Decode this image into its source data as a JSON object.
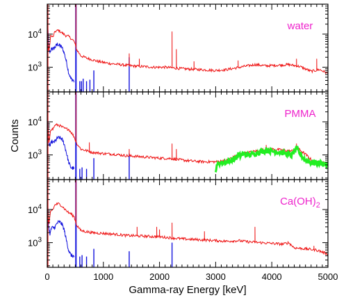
{
  "chart_data": {
    "type": "line",
    "xlabel": "Gamma-ray Energy [keV]",
    "ylabel": "Counts",
    "xlim": [
      0,
      5000
    ],
    "x_ticks": [
      "0",
      "1000",
      "2000",
      "3000",
      "4000",
      "5000"
    ],
    "y_scale": "log",
    "y_tick_labels": [
      {
        "base": "10",
        "exp": "4"
      },
      {
        "base": "10",
        "exp": "3"
      }
    ],
    "label_color": "#ee22cc",
    "colors": {
      "red": "#ee1111",
      "blue": "#1111dd",
      "green": "#22ee22"
    },
    "panels": [
      {
        "label": {
          "main": "water",
          "sub": "",
          "tail": ""
        },
        "red": [
          [
            0,
            12000
          ],
          [
            30,
            2800
          ],
          [
            60,
            9000
          ],
          [
            100,
            8000
          ],
          [
            140,
            12000
          ],
          [
            200,
            13000
          ],
          [
            260,
            11000
          ],
          [
            330,
            9000
          ],
          [
            380,
            8500
          ],
          [
            420,
            7500
          ],
          [
            480,
            6000
          ],
          [
            520,
            3500
          ],
          [
            600,
            2200
          ],
          [
            700,
            1900
          ],
          [
            900,
            1500
          ],
          [
            1100,
            1300
          ],
          [
            1300,
            1200
          ],
          [
            1500,
            1100
          ],
          [
            1700,
            1050
          ],
          [
            1900,
            1000
          ],
          [
            2100,
            1000
          ],
          [
            2400,
            900
          ],
          [
            2700,
            850
          ],
          [
            3000,
            800
          ],
          [
            3200,
            850
          ],
          [
            3500,
            1050
          ],
          [
            3700,
            1200
          ],
          [
            3900,
            1100
          ],
          [
            4100,
            1150
          ],
          [
            4300,
            1200
          ],
          [
            4500,
            1050
          ],
          [
            4700,
            750
          ],
          [
            4850,
            850
          ],
          [
            5000,
            650
          ]
        ],
        "red_peaks": [
          [
            511,
            140000
          ],
          [
            1460,
            2600
          ],
          [
            1640,
            1800
          ],
          [
            2223,
            12000
          ],
          [
            2300,
            3500
          ],
          [
            2614,
            1500
          ],
          [
            3400,
            1600
          ],
          [
            4440,
            1800
          ],
          [
            4800,
            1800
          ]
        ],
        "blue": [
          [
            0,
            50000
          ],
          [
            25,
            4000
          ],
          [
            50,
            2500
          ],
          [
            80,
            4000
          ],
          [
            100,
            3500
          ],
          [
            140,
            4000
          ],
          [
            180,
            5000
          ],
          [
            220,
            4500
          ],
          [
            260,
            4000
          ],
          [
            300,
            2800
          ],
          [
            340,
            1500
          ],
          [
            380,
            700
          ],
          [
            420,
            450
          ],
          [
            480,
            380
          ]
        ],
        "blue_peaks": [
          [
            511,
            140000
          ],
          [
            580,
            380
          ],
          [
            610,
            380
          ],
          [
            640,
            450
          ],
          [
            700,
            380
          ],
          [
            760,
            420
          ],
          [
            830,
            800
          ],
          [
            1460,
            2000
          ]
        ],
        "green": []
      },
      {
        "label": {
          "main": "PMMA",
          "sub": "",
          "tail": ""
        },
        "red": [
          [
            0,
            20000
          ],
          [
            30,
            2200
          ],
          [
            60,
            6000
          ],
          [
            100,
            6000
          ],
          [
            140,
            8000
          ],
          [
            200,
            8000
          ],
          [
            260,
            7000
          ],
          [
            320,
            6200
          ],
          [
            380,
            6000
          ],
          [
            420,
            5000
          ],
          [
            480,
            3500
          ],
          [
            520,
            2300
          ],
          [
            600,
            1500
          ],
          [
            800,
            1200
          ],
          [
            1000,
            1100
          ],
          [
            1200,
            1050
          ],
          [
            1400,
            950
          ],
          [
            1600,
            900
          ],
          [
            1800,
            850
          ],
          [
            2000,
            800
          ],
          [
            2200,
            780
          ],
          [
            2400,
            700
          ],
          [
            2600,
            650
          ],
          [
            2800,
            620
          ],
          [
            3000,
            620
          ],
          [
            3200,
            700
          ],
          [
            3400,
            1000
          ],
          [
            3600,
            1200
          ],
          [
            3800,
            1400
          ],
          [
            4000,
            1500
          ],
          [
            4200,
            1400
          ],
          [
            4350,
            1300
          ],
          [
            4450,
            1700
          ],
          [
            4500,
            1400
          ],
          [
            4600,
            1050
          ],
          [
            4750,
            600
          ],
          [
            4900,
            620
          ],
          [
            5000,
            500
          ]
        ],
        "red_peaks": [
          [
            511,
            140000
          ],
          [
            750,
            2400
          ],
          [
            1460,
            1500
          ],
          [
            2223,
            2200
          ],
          [
            2300,
            1500
          ],
          [
            3900,
            2000
          ],
          [
            4440,
            2200
          ]
        ],
        "blue": [
          [
            0,
            50000
          ],
          [
            25,
            2600
          ],
          [
            50,
            1800
          ],
          [
            80,
            2600
          ],
          [
            100,
            2300
          ],
          [
            140,
            2600
          ],
          [
            180,
            3200
          ],
          [
            220,
            3300
          ],
          [
            260,
            3000
          ],
          [
            300,
            2200
          ],
          [
            340,
            1200
          ],
          [
            380,
            600
          ],
          [
            420,
            420
          ],
          [
            480,
            380
          ]
        ],
        "blue_peaks": [
          [
            511,
            140000
          ],
          [
            580,
            380
          ],
          [
            620,
            420
          ],
          [
            700,
            380
          ],
          [
            830,
            800
          ],
          [
            1460,
            1100
          ]
        ],
        "green": [
          [
            2990,
            600
          ],
          [
            3000,
            330
          ],
          [
            3050,
            600
          ],
          [
            3100,
            560
          ],
          [
            3200,
            620
          ],
          [
            3300,
            720
          ],
          [
            3400,
            900
          ],
          [
            3500,
            1050
          ],
          [
            3600,
            1000
          ],
          [
            3700,
            1100
          ],
          [
            3800,
            1250
          ],
          [
            3900,
            1350
          ],
          [
            4000,
            1300
          ],
          [
            4100,
            1250
          ],
          [
            4200,
            1150
          ],
          [
            4300,
            1050
          ],
          [
            4350,
            950
          ],
          [
            4400,
            1300
          ],
          [
            4450,
            1500
          ],
          [
            4500,
            1100
          ],
          [
            4550,
            850
          ],
          [
            4600,
            700
          ],
          [
            4700,
            600
          ],
          [
            4800,
            580
          ],
          [
            4900,
            560
          ],
          [
            5000,
            500
          ]
        ],
        "green_peaks": [
          [
            3400,
            1200
          ],
          [
            3900,
            1700
          ],
          [
            4440,
            1900
          ]
        ]
      },
      {
        "label": {
          "main": "Ca(OH)",
          "sub": "2",
          "tail": ""
        },
        "red": [
          [
            0,
            15000
          ],
          [
            30,
            3500
          ],
          [
            60,
            9000
          ],
          [
            100,
            10000
          ],
          [
            140,
            14000
          ],
          [
            200,
            15000
          ],
          [
            260,
            13000
          ],
          [
            320,
            10000
          ],
          [
            380,
            8000
          ],
          [
            420,
            7500
          ],
          [
            480,
            6000
          ],
          [
            520,
            3500
          ],
          [
            600,
            2300
          ],
          [
            800,
            2000
          ],
          [
            1000,
            1900
          ],
          [
            1200,
            1800
          ],
          [
            1400,
            1650
          ],
          [
            1600,
            1600
          ],
          [
            1800,
            1550
          ],
          [
            2000,
            1500
          ],
          [
            2200,
            1400
          ],
          [
            2400,
            1300
          ],
          [
            2600,
            1250
          ],
          [
            2800,
            1200
          ],
          [
            3000,
            1150
          ],
          [
            3200,
            1100
          ],
          [
            3400,
            1150
          ],
          [
            3600,
            1050
          ],
          [
            3800,
            1000
          ],
          [
            4000,
            950
          ],
          [
            4200,
            900
          ],
          [
            4300,
            1000
          ],
          [
            4400,
            700
          ],
          [
            4600,
            650
          ],
          [
            4800,
            600
          ],
          [
            5000,
            450
          ]
        ],
        "red_peaks": [
          [
            511,
            140000
          ],
          [
            1600,
            3000
          ],
          [
            1950,
            3000
          ],
          [
            2000,
            2500
          ],
          [
            2223,
            4000
          ],
          [
            2800,
            2200
          ],
          [
            3700,
            3000
          ],
          [
            4750,
            800
          ]
        ],
        "blue": [
          [
            0,
            50000
          ],
          [
            25,
            3000
          ],
          [
            50,
            1800
          ],
          [
            80,
            3000
          ],
          [
            100,
            2700
          ],
          [
            140,
            3000
          ],
          [
            180,
            4000
          ],
          [
            220,
            4200
          ],
          [
            260,
            3700
          ],
          [
            300,
            2500
          ],
          [
            340,
            1200
          ],
          [
            380,
            600
          ],
          [
            420,
            420
          ],
          [
            480,
            380
          ]
        ],
        "blue_peaks": [
          [
            511,
            140000
          ],
          [
            580,
            380
          ],
          [
            620,
            420
          ],
          [
            700,
            380
          ],
          [
            830,
            650
          ],
          [
            1460,
            550
          ],
          [
            2223,
            1000
          ]
        ],
        "green": []
      }
    ]
  }
}
